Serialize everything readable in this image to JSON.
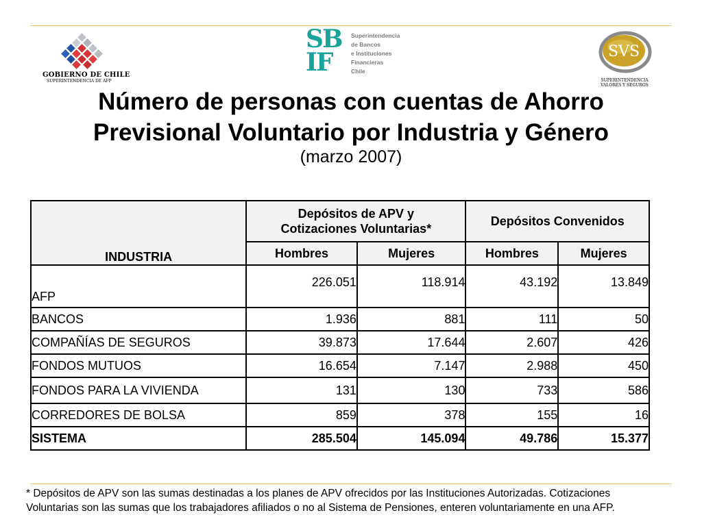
{
  "logos": {
    "gobierno": {
      "line1": "GOBIERNO DE CHILE",
      "line2": "SUPERINTENDENCIA DE AFP"
    },
    "sbif": {
      "letters_top": "SB",
      "letters_bottom": "IF",
      "lines": [
        "Superintendencia",
        "de Bancos",
        "e Instituciones",
        "Financieras",
        "Chile"
      ]
    },
    "svs": {
      "mark": "SVS",
      "line1": "SUPERINTENDENCIA",
      "line2": "VALORES Y SEGUROS"
    }
  },
  "title": {
    "line1": "Número de personas con cuentas de Ahorro",
    "line2": "Previsional Voluntario por Industria y Género",
    "subtitle": "(marzo 2007)"
  },
  "table": {
    "col_industria": "INDUSTRIA",
    "group1_line1": "Depósitos de APV y",
    "group1_line2": "Cotizaciones Voluntarias*",
    "group2": "Depósitos Convenidos",
    "sub": [
      "Hombres",
      "Mujeres",
      "Hombres",
      "Mujeres"
    ],
    "rows": [
      {
        "name": "AFP",
        "values": [
          "226.051",
          "118.914",
          "43.192",
          "13.849"
        ]
      },
      {
        "name": "BANCOS",
        "values": [
          "1.936",
          "881",
          "111",
          "50"
        ]
      },
      {
        "name": "COMPAÑÍAS DE SEGUROS",
        "values": [
          "39.873",
          "17.644",
          "2.607",
          "426"
        ]
      },
      {
        "name": "FONDOS MUTUOS",
        "values": [
          "16.654",
          "7.147",
          "2.988",
          "450"
        ]
      },
      {
        "name": "FONDOS PARA LA VIVIENDA",
        "values": [
          "131",
          "130",
          "733",
          "586"
        ]
      },
      {
        "name": "CORREDORES DE BOLSA",
        "values": [
          "859",
          "378",
          "155",
          "16"
        ]
      },
      {
        "name": "SISTEMA",
        "values": [
          "285.504",
          "145.094",
          "49.786",
          "15.377"
        ]
      }
    ]
  },
  "footnote": {
    "line1": "* Depósitos de APV son las sumas destinadas a los planes de APV ofrecidos por las Instituciones Autorizadas. Cotizaciones",
    "line2": "Voluntarias son las sumas que los trabajadores afiliados o no al Sistema de Pensiones, enteren voluntariamente en una AFP."
  },
  "colors": {
    "rule": "#e8c27a",
    "sbif_teal": "#1aa39b",
    "header_bg": "#f2f2f2"
  }
}
